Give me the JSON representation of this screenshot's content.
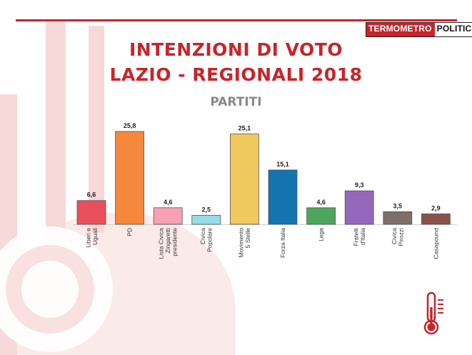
{
  "header": {
    "logo_part1": "TERMOMETRO",
    "logo_part2": "POLITICO",
    "title_line1": "INTENZIONI DI VOTO",
    "title_line2": "LAZIO - REGIONALI 2018",
    "subtitle": "PARTITI"
  },
  "colors": {
    "accent": "#c8242b",
    "subtitle": "#8a8a8a",
    "background_deco": "#f7d9d9"
  },
  "icons": [
    "thermometer-icon"
  ],
  "chart_data": {
    "type": "bar",
    "title": "INTENZIONI DI VOTO",
    "subtitle": "PARTITI",
    "xlabel": "",
    "ylabel": "",
    "ylim": [
      0,
      30
    ],
    "grid": false,
    "legend": "none",
    "categories": [
      [
        "Liberi e",
        "Uguali"
      ],
      [
        "PD"
      ],
      [
        "Lista Civica",
        "Zingaretti",
        "presidente"
      ],
      [
        "Civica",
        "Popolare"
      ],
      [
        "Movimento",
        "5 Stelle"
      ],
      [
        "Forza Italia"
      ],
      [
        "Lega"
      ],
      [
        "Fratelli",
        "d'Italia"
      ],
      [
        "Civica",
        "Pirozzi"
      ],
      [
        "Casapound"
      ]
    ],
    "values": [
      6.6,
      25.8,
      4.6,
      2.5,
      25.1,
      15.1,
      4.6,
      9.3,
      3.5,
      2.9
    ],
    "value_labels": [
      "6,6",
      "25,8",
      "4,6",
      "2,5",
      "25,1",
      "15,1",
      "4,6",
      "9,3",
      "3,5",
      "2,9"
    ],
    "colors": [
      "#e8505b",
      "#f5883c",
      "#f7a0b4",
      "#96dde6",
      "#efc95e",
      "#1474b0",
      "#4ea55c",
      "#9467bd",
      "#7d6e67",
      "#8c5249"
    ]
  }
}
